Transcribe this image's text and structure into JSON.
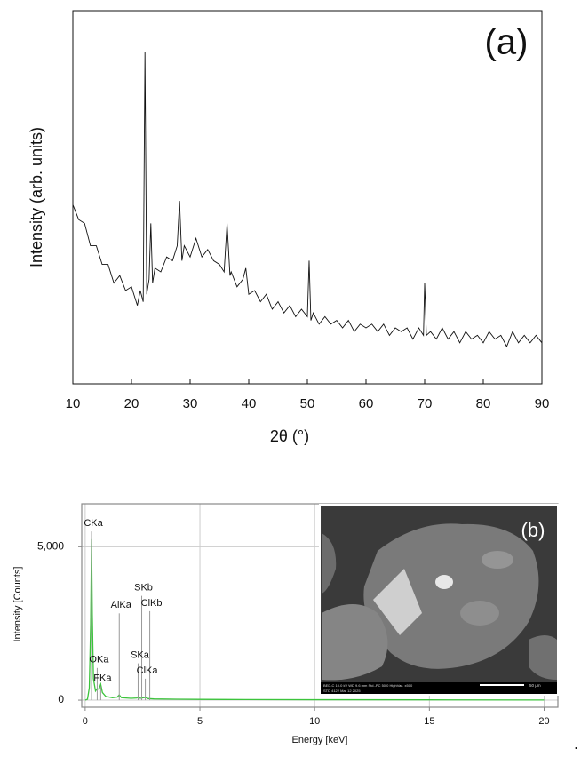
{
  "chart_data": [
    {
      "type": "line",
      "annotation": "(a)",
      "x_label": "2θ (°)",
      "y_label": "Intensity (arb. units)",
      "color": "#111111",
      "x": [
        10,
        11,
        12,
        13,
        14,
        15,
        16,
        17,
        18,
        19,
        20,
        21,
        21.5,
        22,
        22.3,
        22.6,
        23,
        23.3,
        23.6,
        24,
        25,
        26,
        27,
        27.8,
        28.2,
        28.6,
        29,
        30,
        31,
        32,
        33,
        34,
        35,
        35.8,
        36.3,
        36.8,
        37,
        38,
        39,
        39.5,
        40,
        41,
        42,
        43,
        44,
        45,
        46,
        47,
        48,
        49,
        50,
        50.3,
        50.6,
        51,
        52,
        53,
        54,
        55,
        56,
        57,
        58,
        59,
        60,
        61,
        62,
        63,
        64,
        65,
        66,
        67,
        68,
        69,
        69.8,
        70,
        70.3,
        71,
        72,
        73,
        74,
        75,
        76,
        77,
        78,
        79,
        80,
        81,
        82,
        83,
        84,
        85,
        86,
        87,
        88,
        89,
        90
      ],
      "values": [
        48,
        44,
        43,
        37,
        37,
        32,
        32,
        27,
        29,
        25,
        26,
        21,
        25,
        22,
        89,
        24,
        28,
        43,
        27,
        31,
        30,
        34,
        33,
        37,
        49,
        33,
        37,
        34,
        39,
        34,
        36,
        33,
        32,
        30,
        43,
        29,
        30,
        26,
        28,
        31,
        24,
        25,
        22,
        24,
        20,
        22,
        19,
        21,
        18,
        20,
        18,
        33,
        17,
        19,
        16,
        18,
        16,
        17,
        15,
        17,
        14,
        16,
        15,
        16,
        14,
        16,
        13,
        15,
        14,
        15,
        12,
        15,
        13,
        27,
        13,
        14,
        12,
        15,
        12,
        14,
        11,
        14,
        12,
        13,
        11,
        14,
        12,
        13,
        10,
        14,
        11,
        13,
        11,
        13,
        11
      ],
      "xlim": [
        10,
        90
      ],
      "xticks": [
        10,
        20,
        30,
        40,
        50,
        60,
        70,
        80,
        90
      ],
      "ylim": [
        0,
        100
      ],
      "grid": false
    },
    {
      "type": "line",
      "x_label": "Energy [keV]",
      "y_label": "Intensity [Counts]",
      "color": "#3cc43c",
      "x": [
        0,
        0.1,
        0.18,
        0.24,
        0.277,
        0.31,
        0.36,
        0.45,
        0.525,
        0.6,
        0.677,
        0.75,
        0.9,
        1.2,
        1.4,
        1.486,
        1.58,
        2.0,
        2.25,
        2.307,
        2.4,
        2.621,
        2.75,
        3.0,
        4.0,
        5.0,
        7.0,
        10.0,
        15.0,
        20.0
      ],
      "values": [
        0,
        30,
        400,
        2500,
        5250,
        2800,
        700,
        300,
        380,
        350,
        520,
        250,
        120,
        80,
        100,
        170,
        80,
        60,
        70,
        110,
        60,
        90,
        50,
        40,
        30,
        25,
        20,
        15,
        10,
        5
      ],
      "xlim": [
        -0.15,
        20.6
      ],
      "xticks": [
        0,
        5,
        10,
        15,
        20
      ],
      "ylim": [
        -230,
        6400
      ],
      "yticks": [
        0,
        {
          "value": 5000,
          "label": "5,000"
        }
      ],
      "grid": true,
      "peaks": [
        {
          "label": "CKa",
          "energy": 0.277,
          "height": 5500
        },
        {
          "label": "OKa",
          "energy": 0.525,
          "height": 1050
        },
        {
          "label": "FKa",
          "energy": 0.677,
          "height": 450
        },
        {
          "label": "AlKa",
          "energy": 1.486,
          "height": 2830
        },
        {
          "label": "SKb",
          "energy": 2.464,
          "height": 3400
        },
        {
          "label": "SKa",
          "energy": 2.307,
          "height": 1200
        },
        {
          "label": "ClKb",
          "energy": 2.815,
          "height": 2900
        },
        {
          "label": "ClKa",
          "energy": 2.621,
          "height": 700
        }
      ],
      "inset": {
        "label": "(b)",
        "info": [
          "BED-C 10.0 kV WD 9.6 mm Std.-PC 50.0 HighVac. x500",
          "STD 4122 Mar 12 2025"
        ],
        "scale_bar": "50 μm"
      }
    }
  ],
  "end_mark": "."
}
